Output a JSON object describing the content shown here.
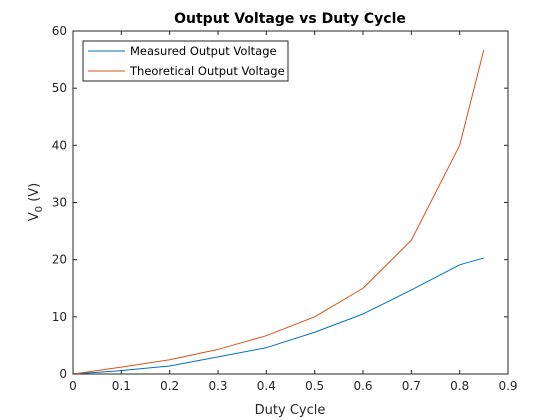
{
  "chart_data": {
    "type": "line",
    "title": "Output Voltage vs Duty Cycle",
    "xlabel": "Duty Cycle",
    "ylabel": {
      "main": "V",
      "sub": "0",
      "rest": " (V)"
    },
    "xlim": [
      0,
      0.9
    ],
    "ylim": [
      0,
      60
    ],
    "xticks": [
      "0",
      "0.1",
      "0.2",
      "0.3",
      "0.4",
      "0.5",
      "0.6",
      "0.7",
      "0.8",
      "0.9"
    ],
    "yticks": [
      "0",
      "10",
      "20",
      "30",
      "40",
      "50",
      "60"
    ],
    "grid": false,
    "legend_position": "top-left",
    "series": [
      {
        "name": "Measured Output Voltage",
        "color": "#0072BD",
        "x": [
          0,
          0.1,
          0.2,
          0.3,
          0.4,
          0.5,
          0.6,
          0.7,
          0.8,
          0.85
        ],
        "y": [
          0,
          0.6,
          1.4,
          3.0,
          4.6,
          7.3,
          10.5,
          14.7,
          19.1,
          20.3
        ]
      },
      {
        "name": "Theoretical Output Voltage",
        "color": "#D95319",
        "x": [
          0,
          0.1,
          0.2,
          0.3,
          0.4,
          0.5,
          0.6,
          0.7,
          0.8,
          0.85
        ],
        "y": [
          0,
          1.2,
          2.5,
          4.3,
          6.7,
          10.0,
          15.0,
          23.4,
          40.0,
          56.7
        ]
      }
    ]
  }
}
